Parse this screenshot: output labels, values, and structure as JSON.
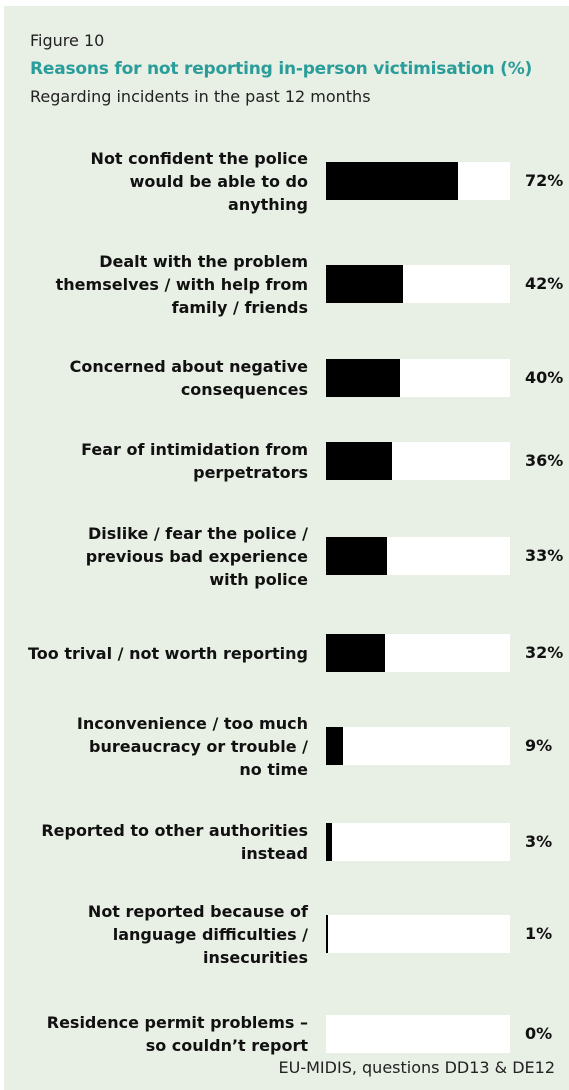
{
  "figure_label": "Figure 10",
  "title": "Reasons for not reporting in-person victimisation (%)",
  "subtitle": "Regarding incidents in the past 12 months",
  "source": "EU-MIDIS, questions DD13 & DE12",
  "colors": {
    "background": "#e8efe4",
    "title": "#2a9d9a",
    "bar": "#000000",
    "track": "#ffffff"
  },
  "chart_data": {
    "type": "bar",
    "orientation": "horizontal",
    "unit": "%",
    "xlim": [
      0,
      100
    ],
    "grid": false,
    "categories": [
      [
        "Not confident the police",
        "would be able to do",
        "anything"
      ],
      [
        "Dealt with the problem",
        "themselves / with help from",
        "family / friends"
      ],
      [
        "Concerned about negative",
        "consequences"
      ],
      [
        "Fear of intimidation from",
        "perpetrators"
      ],
      [
        "Dislike / fear the police /",
        "previous bad experience",
        "with police"
      ],
      [
        "Too trival / not worth reporting"
      ],
      [
        "Inconvenience / too much",
        "bureaucracy or trouble /",
        "no time"
      ],
      [
        "Reported to other authorities",
        "instead"
      ],
      [
        "Not reported because of",
        "language difficulties /",
        "insecurities"
      ],
      [
        "Residence permit problems –",
        "so couldn’t report"
      ]
    ],
    "values": [
      72,
      42,
      40,
      36,
      33,
      32,
      9,
      3,
      1,
      0
    ],
    "value_labels": [
      "72%",
      "42%",
      "40%",
      "36%",
      "33%",
      "32%",
      "9%",
      "3%",
      "1%",
      "0%"
    ]
  }
}
